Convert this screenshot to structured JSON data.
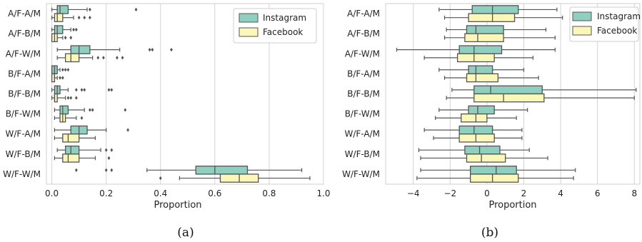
{
  "colors": {
    "instagram": "#8fcfc0",
    "facebook": "#fbf7b8",
    "line": "#555555",
    "grid": "#d3d3d3"
  },
  "chart_data": [
    {
      "type": "boxplot",
      "orientation": "horizontal",
      "caption": "(a)",
      "xlabel": "Proportion",
      "xlim": [
        -0.02,
        1.0
      ],
      "xticks": [
        0.0,
        0.2,
        0.4,
        0.6,
        0.8,
        1.0
      ],
      "xtick_labels": [
        "0.0",
        "0.2",
        "0.4",
        "0.6",
        "0.8",
        "1.0"
      ],
      "grid": "vertical",
      "legend_position": "top-right",
      "categories": [
        "A/F-A/M",
        "A/F-B/M",
        "A/F-W/M",
        "B/F-A/M",
        "B/F-B/M",
        "B/F-W/M",
        "W/F-A/M",
        "W/F-B/M",
        "W/F-W/M"
      ],
      "series": [
        {
          "name": "Instagram",
          "color": "#8fcfc0",
          "boxes": [
            {
              "min": 0.0,
              "q1": 0.02,
              "median": 0.03,
              "q3": 0.06,
              "max": 0.13,
              "outliers": [
                0.14,
                0.31
              ]
            },
            {
              "min": 0.0,
              "q1": 0.01,
              "median": 0.02,
              "q3": 0.04,
              "max": 0.07,
              "outliers": [
                0.08,
                0.09
              ]
            },
            {
              "min": 0.02,
              "q1": 0.07,
              "median": 0.1,
              "q3": 0.14,
              "max": 0.25,
              "outliers": [
                0.36,
                0.37,
                0.44
              ]
            },
            {
              "min": 0.0,
              "q1": 0.0,
              "median": 0.01,
              "q3": 0.02,
              "max": 0.03,
              "outliers": [
                0.04,
                0.05,
                0.06
              ]
            },
            {
              "min": 0.0,
              "q1": 0.01,
              "median": 0.02,
              "q3": 0.03,
              "max": 0.06,
              "outliers": [
                0.09,
                0.11,
                0.12,
                0.21,
                0.22
              ]
            },
            {
              "min": 0.01,
              "q1": 0.03,
              "median": 0.04,
              "q3": 0.06,
              "max": 0.12,
              "outliers": [
                0.14,
                0.15,
                0.27
              ]
            },
            {
              "min": 0.01,
              "q1": 0.07,
              "median": 0.1,
              "q3": 0.13,
              "max": 0.2,
              "outliers": [
                0.28
              ]
            },
            {
              "min": 0.02,
              "q1": 0.05,
              "median": 0.07,
              "q3": 0.1,
              "max": 0.18,
              "outliers": [
                0.2,
                0.22
              ]
            },
            {
              "min": 0.35,
              "q1": 0.53,
              "median": 0.6,
              "q3": 0.72,
              "max": 0.92,
              "outliers": [
                0.09,
                0.2,
                0.22
              ]
            }
          ]
        },
        {
          "name": "Facebook",
          "color": "#fbf7b8",
          "boxes": [
            {
              "min": 0.0,
              "q1": 0.01,
              "median": 0.02,
              "q3": 0.04,
              "max": 0.08,
              "outliers": [
                0.1,
                0.12,
                0.14
              ]
            },
            {
              "min": 0.0,
              "q1": 0.0,
              "median": 0.01,
              "q3": 0.02,
              "max": 0.04,
              "outliers": [
                0.05,
                0.07
              ]
            },
            {
              "min": 0.02,
              "q1": 0.05,
              "median": 0.07,
              "q3": 0.1,
              "max": 0.15,
              "outliers": [
                0.17,
                0.19,
                0.24,
                0.26
              ]
            },
            {
              "min": 0.0,
              "q1": 0.0,
              "median": 0.01,
              "q3": 0.01,
              "max": 0.02,
              "outliers": [
                0.03,
                0.04
              ]
            },
            {
              "min": 0.0,
              "q1": 0.01,
              "median": 0.01,
              "q3": 0.02,
              "max": 0.05,
              "outliers": [
                0.06,
                0.07,
                0.09
              ]
            },
            {
              "min": 0.01,
              "q1": 0.03,
              "median": 0.04,
              "q3": 0.05,
              "max": 0.09,
              "outliers": [
                0.11
              ]
            },
            {
              "min": 0.01,
              "q1": 0.04,
              "median": 0.06,
              "q3": 0.1,
              "max": 0.16,
              "outliers": []
            },
            {
              "min": 0.01,
              "q1": 0.04,
              "median": 0.06,
              "q3": 0.1,
              "max": 0.16,
              "outliers": [
                0.21
              ]
            },
            {
              "min": 0.47,
              "q1": 0.62,
              "median": 0.69,
              "q3": 0.76,
              "max": 0.95,
              "outliers": [
                0.4
              ]
            }
          ]
        }
      ]
    },
    {
      "type": "boxplot",
      "orientation": "horizontal",
      "caption": "(b)",
      "xlabel": "Proportion",
      "xlim": [
        -5.5,
        8.3
      ],
      "xticks": [
        -4,
        -2,
        0,
        2,
        4,
        6,
        8
      ],
      "xtick_labels": [
        "−4",
        "−2",
        "0",
        "2",
        "4",
        "6",
        "8"
      ],
      "grid": "vertical",
      "legend_position": "top-right",
      "categories": [
        "A/F-A/M",
        "A/F-B/M",
        "A/F-W/M",
        "B/F-A/M",
        "B/F-B/M",
        "B/F-W/M",
        "W/F-A/M",
        "W/F-B/M",
        "W/F-W/M"
      ],
      "series": [
        {
          "name": "Instagram",
          "color": "#8fcfc0",
          "boxes": [
            {
              "min": -2.6,
              "q1": -0.8,
              "median": 0.3,
              "q3": 1.7,
              "max": 3.8,
              "outliers": []
            },
            {
              "min": -2.2,
              "q1": -1.1,
              "median": -0.6,
              "q3": 0.9,
              "max": 3.2,
              "outliers": []
            },
            {
              "min": -4.9,
              "q1": -1.5,
              "median": -0.7,
              "q3": 0.8,
              "max": 3.7,
              "outliers": []
            },
            {
              "min": -2.6,
              "q1": -1.0,
              "median": -0.6,
              "q3": 0.3,
              "max": 2.0,
              "outliers": []
            },
            {
              "min": -1.9,
              "q1": -0.7,
              "median": 0.2,
              "q3": 3.0,
              "max": 8.1,
              "outliers": []
            },
            {
              "min": -2.6,
              "q1": -1.0,
              "median": -0.5,
              "q3": 0.4,
              "max": 2.2,
              "outliers": []
            },
            {
              "min": -3.4,
              "q1": -1.5,
              "median": -0.7,
              "q3": 0.3,
              "max": 1.9,
              "outliers": []
            },
            {
              "min": -3.7,
              "q1": -1.2,
              "median": -0.4,
              "q3": 0.7,
              "max": 2.3,
              "outliers": []
            },
            {
              "min": -3.6,
              "q1": -0.9,
              "median": 0.5,
              "q3": 1.6,
              "max": 4.8,
              "outliers": []
            }
          ]
        },
        {
          "name": "Facebook",
          "color": "#fbf7b8",
          "boxes": [
            {
              "min": -2.3,
              "q1": -1.0,
              "median": 0.3,
              "q3": 1.5,
              "max": 4.1,
              "outliers": []
            },
            {
              "min": -2.3,
              "q1": -1.2,
              "median": -0.5,
              "q3": 0.9,
              "max": 3.7,
              "outliers": []
            },
            {
              "min": -3.4,
              "q1": -1.6,
              "median": -0.7,
              "q3": 0.4,
              "max": 2.5,
              "outliers": []
            },
            {
              "min": -2.3,
              "q1": -1.1,
              "median": -0.6,
              "q3": 0.6,
              "max": 2.8,
              "outliers": []
            },
            {
              "min": -2.2,
              "q1": -0.7,
              "median": 0.9,
              "q3": 3.1,
              "max": 8.0,
              "outliers": []
            },
            {
              "min": -2.8,
              "q1": -1.4,
              "median": -0.6,
              "q3": 0.0,
              "max": 1.6,
              "outliers": []
            },
            {
              "min": -2.9,
              "q1": -1.5,
              "median": -0.6,
              "q3": 0.4,
              "max": 1.9,
              "outliers": []
            },
            {
              "min": -3.6,
              "q1": -1.1,
              "median": -0.3,
              "q3": 1.0,
              "max": 3.3,
              "outliers": []
            },
            {
              "min": -3.8,
              "q1": -0.9,
              "median": 0.3,
              "q3": 1.7,
              "max": 4.7,
              "outliers": []
            }
          ]
        }
      ]
    }
  ]
}
